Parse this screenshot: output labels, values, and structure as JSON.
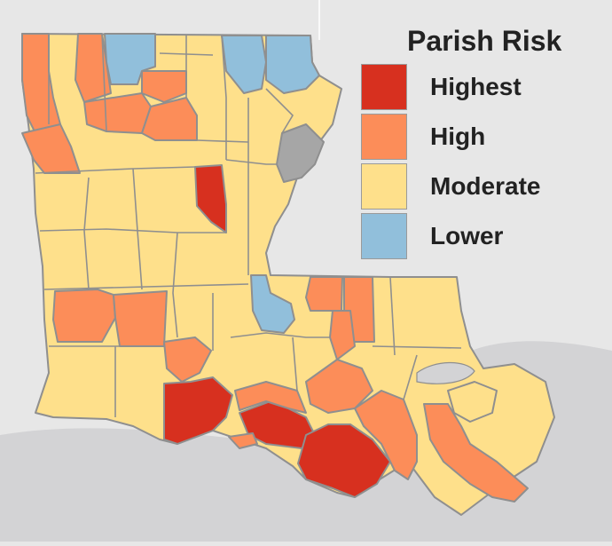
{
  "legend": {
    "title": "Parish Risk",
    "items": [
      {
        "key": "highest",
        "label": "Highest",
        "color": "#d7301f"
      },
      {
        "key": "high",
        "label": "High",
        "color": "#fc8d59"
      },
      {
        "key": "moderate",
        "label": "Moderate",
        "color": "#fee08b"
      },
      {
        "key": "lower",
        "label": "Lower",
        "color": "#91bfdb"
      }
    ]
  },
  "colors": {
    "no_data": "#a6a6a6",
    "border": "#8f8f8f",
    "land_background": "#d0d0d0",
    "gulf": "#e7e7e7"
  }
}
